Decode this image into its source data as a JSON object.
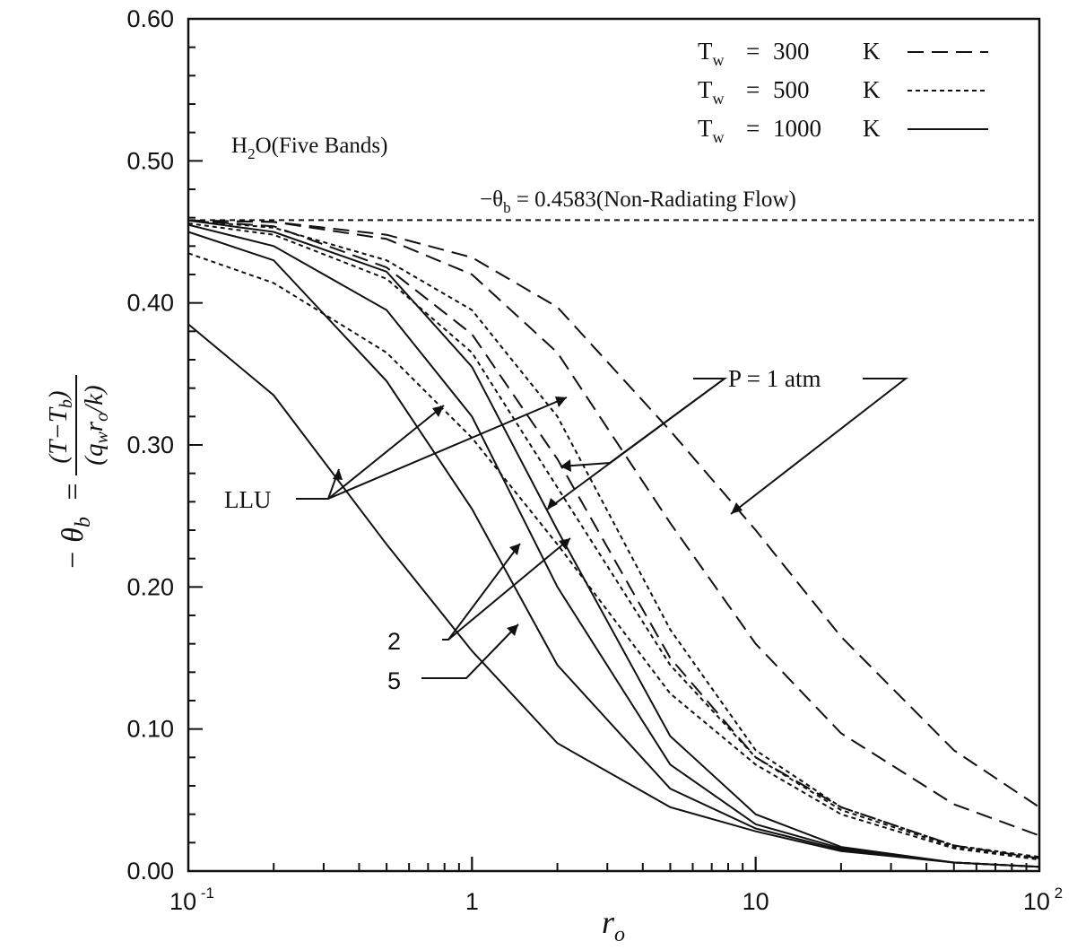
{
  "chart_data": {
    "type": "line",
    "x_scale": "log",
    "xlim": [
      0.1,
      100
    ],
    "ylim": [
      0,
      0.6
    ],
    "grid": false,
    "legend_position": "top-right",
    "x_ticks": [
      {
        "value": 0.1,
        "base": "10",
        "exp": "-1"
      },
      {
        "value": 1,
        "base": "1",
        "exp": ""
      },
      {
        "value": 10,
        "base": "10",
        "exp": ""
      },
      {
        "value": 100,
        "base": "10",
        "exp": "2"
      }
    ],
    "y_ticks": [
      "0.00",
      "0.10",
      "0.20",
      "0.30",
      "0.40",
      "0.50",
      "0.60"
    ],
    "ylabel_parts": {
      "lhs": "− θ",
      "lhs_sub": "b",
      "eq": "=",
      "num": "(T−T",
      "num_sub": "b",
      "num_end": ")",
      "den": "(q",
      "den_sub1": "w",
      "den_mid": "r",
      "den_sub2": "o",
      "den_end": "/k)"
    },
    "xlabel_parts": {
      "main": "r",
      "sub": "o"
    },
    "gas_label": {
      "pre": "H",
      "sub": "2",
      "post": "O(Five Bands)"
    },
    "reference": {
      "y": 0.4583,
      "pre": "−θ",
      "sub": "b",
      "post": " = 0.4583(Non-Radiating Flow)"
    },
    "legend": [
      {
        "pre": "T",
        "sub": "w",
        "eq": "=",
        "value": "300",
        "unit": "K",
        "style": "dashed"
      },
      {
        "pre": "T",
        "sub": "w",
        "eq": "=",
        "value": "500",
        "unit": "K",
        "style": "dotted"
      },
      {
        "pre": "T",
        "sub": "w",
        "eq": "=",
        "value": "1000",
        "unit": "K",
        "style": "solid"
      }
    ],
    "annotations": {
      "pressure_1": "P = 1 atm",
      "pressure_2": "2",
      "pressure_5": "5",
      "llu": "LLU"
    },
    "x": [
      0.1,
      0.2,
      0.5,
      1,
      2,
      5,
      10,
      20,
      50,
      100
    ],
    "series": [
      {
        "style": "dashed",
        "values": [
          0.458,
          0.457,
          0.448,
          0.432,
          0.397,
          0.31,
          0.24,
          0.165,
          0.085,
          0.045
        ]
      },
      {
        "style": "dashed",
        "values": [
          0.458,
          0.457,
          0.445,
          0.42,
          0.365,
          0.245,
          0.16,
          0.097,
          0.047,
          0.025
        ]
      },
      {
        "style": "dashed",
        "values": [
          0.458,
          0.454,
          0.425,
          0.378,
          0.29,
          0.15,
          0.08,
          0.045,
          0.018,
          0.009
        ]
      },
      {
        "style": "dotted",
        "values": [
          0.458,
          0.453,
          0.43,
          0.395,
          0.32,
          0.17,
          0.085,
          0.045,
          0.018,
          0.01
        ]
      },
      {
        "style": "dotted",
        "values": [
          0.456,
          0.448,
          0.417,
          0.365,
          0.27,
          0.145,
          0.08,
          0.043,
          0.017,
          0.009
        ]
      },
      {
        "style": "dotted",
        "values": [
          0.435,
          0.414,
          0.365,
          0.305,
          0.23,
          0.125,
          0.075,
          0.04,
          0.016,
          0.008
        ]
      },
      {
        "style": "solid",
        "values": [
          0.458,
          0.45,
          0.422,
          0.355,
          0.24,
          0.095,
          0.04,
          0.017,
          0.006,
          0.003
        ]
      },
      {
        "style": "solid",
        "values": [
          0.455,
          0.44,
          0.395,
          0.32,
          0.2,
          0.075,
          0.033,
          0.016,
          0.006,
          0.003
        ]
      },
      {
        "style": "solid",
        "values": [
          0.45,
          0.43,
          0.345,
          0.255,
          0.145,
          0.058,
          0.03,
          0.015,
          0.006,
          0.003
        ]
      },
      {
        "style": "solid",
        "values": [
          0.385,
          0.335,
          0.23,
          0.155,
          0.09,
          0.045,
          0.028,
          0.014,
          0.006,
          0.003
        ]
      }
    ]
  }
}
